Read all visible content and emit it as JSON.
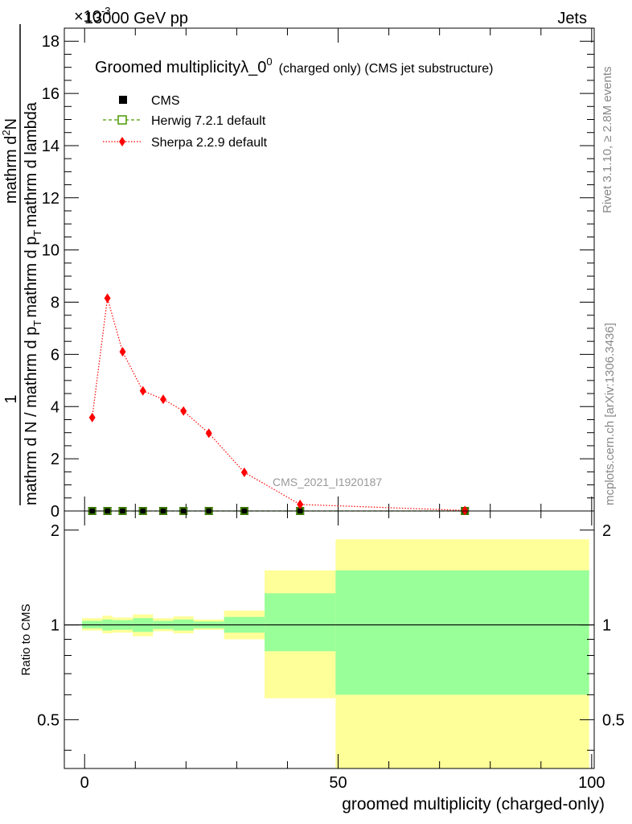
{
  "header": {
    "left": "13000 GeV pp",
    "right": "Jets",
    "exponent": "×10",
    "exponent_power": "-3"
  },
  "side_labels": {
    "rivet": "Rivet 3.1.10, ≥ 2.8M events",
    "mcplots": "mcplots.cern.ch [arXiv:1306.3436]"
  },
  "chart_data": [
    {
      "type": "line",
      "title": "Groomed multiplicityλ_0",
      "title_sup": "0",
      "title_suffix": "(charged only) (CMS jet substructure)",
      "ylabel_numerator": "1",
      "ylabel_fraction_top": "mathrm d",
      "ylabel_fraction_top_sup": "2",
      "ylabel_fraction_top_tail": "N",
      "ylabel_denominator": "mathrm d N / mathrm d p",
      "ylabel_denominator_mid": "mathrm d p",
      "ylabel_denominator_tail": "mathrm d lambda",
      "ylabel_sub": "T",
      "watermark": "CMS_2021_I1920187",
      "xlim": [
        -4,
        100.5
      ],
      "ylim": [
        0,
        18.5
      ],
      "y_ticks": [
        0,
        2,
        4,
        6,
        8,
        10,
        12,
        14,
        16,
        18
      ],
      "legend": [
        {
          "name": "CMS",
          "color": "#000000",
          "marker": "square-filled",
          "line": "none"
        },
        {
          "name": "Herwig 7.2.1 default",
          "color": "#4a9a00",
          "marker": "square-open",
          "line": "dashed"
        },
        {
          "name": "Sherpa 2.2.9 default",
          "color": "#ff0000",
          "marker": "diamond",
          "line": "dotted"
        }
      ],
      "series": [
        {
          "name": "CMS",
          "x": [
            1.5,
            4.5,
            7.5,
            11.5,
            15.5,
            19.5,
            24.5,
            31.5,
            42.5,
            75.0
          ],
          "y": [
            0,
            0,
            0,
            0,
            0,
            0,
            0,
            0,
            0,
            0
          ]
        },
        {
          "name": "Herwig 7.2.1 default",
          "x": [
            1.5,
            4.5,
            7.5,
            11.5,
            15.5,
            19.5,
            24.5,
            31.5,
            42.5,
            75.0
          ],
          "y": [
            0,
            0,
            0,
            0,
            0,
            0,
            0,
            0,
            0,
            0
          ]
        },
        {
          "name": "Sherpa 2.2.9 default",
          "x": [
            1.5,
            4.5,
            7.5,
            11.5,
            15.5,
            19.5,
            24.5,
            31.5,
            42.5,
            75.0
          ],
          "y": [
            3.58,
            8.15,
            6.1,
            4.6,
            4.28,
            3.83,
            2.98,
            1.48,
            0.25,
            0.02
          ]
        }
      ]
    },
    {
      "type": "area",
      "ylabel": "Ratio to CMS",
      "xlabel": "groomed multiplicity (charged-only)",
      "xlim": [
        -4,
        100.5
      ],
      "ylim": [
        0.35,
        2.3
      ],
      "x_ticks": [
        0,
        50,
        100
      ],
      "y_ticks": [
        0.5,
        1,
        2
      ],
      "reference_line": 1,
      "bins": [
        {
          "x0": -0.5,
          "x1": 3.5,
          "stat_lo": 0.975,
          "stat_hi": 1.03,
          "total_lo": 0.96,
          "total_hi": 1.05
        },
        {
          "x0": 3.5,
          "x1": 5.5,
          "stat_lo": 0.96,
          "stat_hi": 1.04,
          "total_lo": 0.94,
          "total_hi": 1.07
        },
        {
          "x0": 5.5,
          "x1": 9.5,
          "stat_lo": 0.965,
          "stat_hi": 1.035,
          "total_lo": 0.945,
          "total_hi": 1.055
        },
        {
          "x0": 9.5,
          "x1": 13.5,
          "stat_lo": 0.95,
          "stat_hi": 1.05,
          "total_lo": 0.92,
          "total_hi": 1.08
        },
        {
          "x0": 13.5,
          "x1": 17.5,
          "stat_lo": 0.97,
          "stat_hi": 1.03,
          "total_lo": 0.955,
          "total_hi": 1.05
        },
        {
          "x0": 17.5,
          "x1": 21.5,
          "stat_lo": 0.96,
          "stat_hi": 1.04,
          "total_lo": 0.94,
          "total_hi": 1.065
        },
        {
          "x0": 21.5,
          "x1": 27.5,
          "stat_lo": 0.975,
          "stat_hi": 1.025,
          "total_lo": 0.965,
          "total_hi": 1.04
        },
        {
          "x0": 27.5,
          "x1": 35.5,
          "stat_lo": 0.945,
          "stat_hi": 1.06,
          "total_lo": 0.9,
          "total_hi": 1.11
        },
        {
          "x0": 35.5,
          "x1": 49.5,
          "stat_lo": 0.825,
          "stat_hi": 1.26,
          "total_lo": 0.585,
          "total_hi": 1.49
        },
        {
          "x0": 49.5,
          "x1": 99.5,
          "stat_lo": 0.6,
          "stat_hi": 1.49,
          "total_lo": 0.35,
          "total_hi": 1.87
        }
      ],
      "colors": {
        "stat": "#99ff99",
        "total": "#ffff99"
      }
    }
  ]
}
